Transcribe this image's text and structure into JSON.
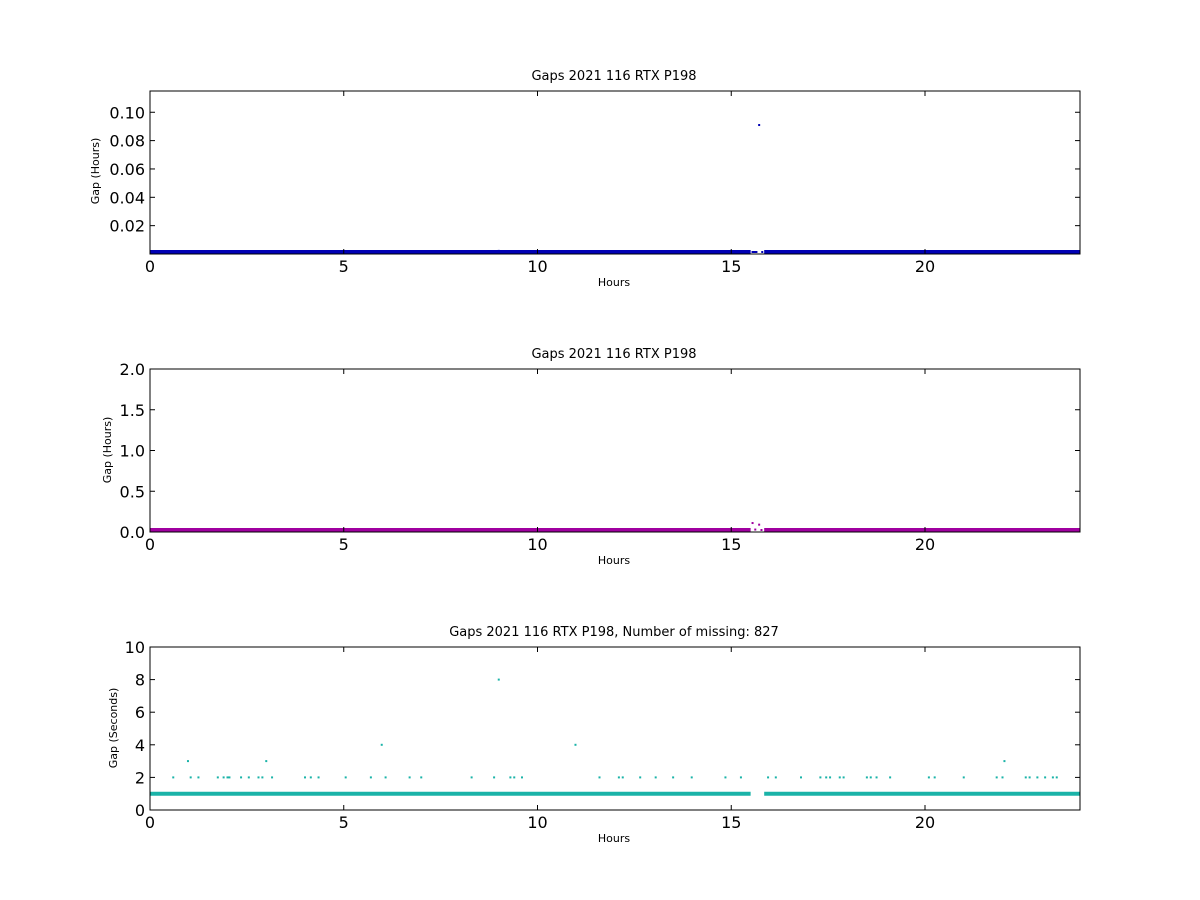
{
  "colors": {
    "panel1": "#0000b4",
    "panel2": "#a000a0",
    "panel3": "#1ab3a8",
    "axes": "#000000",
    "background": "#ffffff"
  },
  "chart_data": [
    {
      "type": "scatter",
      "title": "Gaps 2021 116 RTX  P198",
      "xlabel": "Hours",
      "ylabel": "Gap (Hours)",
      "xlim": [
        0,
        24
      ],
      "ylim": [
        0,
        0.115
      ],
      "xticks": [
        0,
        5,
        10,
        15,
        20
      ],
      "xtick_labels": [
        "0",
        "5",
        "10",
        "15",
        "20"
      ],
      "yticks": [
        0.02,
        0.04,
        0.06,
        0.08,
        0.1
      ],
      "ytick_labels": [
        "0.02",
        "0.04",
        "0.06",
        "0.08",
        "0.10"
      ],
      "grid": false,
      "series": [
        {
          "baseline": {
            "y": 0.0003,
            "x_ranges": [
              [
                0,
                15.5
              ],
              [
                15.85,
                24
              ]
            ]
          },
          "points": [
            {
              "x": 9.0,
              "y": 0.0022
            },
            {
              "x": 15.55,
              "y": 0.0006
            },
            {
              "x": 15.6,
              "y": 0.0008
            },
            {
              "x": 15.65,
              "y": 0.0006
            },
            {
              "x": 15.72,
              "y": 0.091
            },
            {
              "x": 15.8,
              "y": 0.0008
            }
          ]
        }
      ]
    },
    {
      "type": "scatter",
      "title": "Gaps 2021 116 RTX  P198",
      "xlabel": "Hours",
      "ylabel": "Gap (Hours)",
      "xlim": [
        0,
        24
      ],
      "ylim": [
        0,
        2.0
      ],
      "xticks": [
        0,
        5,
        10,
        15,
        20
      ],
      "xtick_labels": [
        "0",
        "5",
        "10",
        "15",
        "20"
      ],
      "yticks": [
        0.0,
        0.5,
        1.0,
        1.5,
        2.0
      ],
      "ytick_labels": [
        "0.0",
        "0.5",
        "1.0",
        "1.5",
        "2.0"
      ],
      "grid": false,
      "series": [
        {
          "baseline": {
            "y": 0.01,
            "x_ranges": [
              [
                0,
                15.5
              ],
              [
                15.85,
                24
              ]
            ]
          },
          "points": [
            {
              "x": 15.55,
              "y": 0.11
            },
            {
              "x": 15.62,
              "y": 0.03
            },
            {
              "x": 15.72,
              "y": 0.09
            },
            {
              "x": 15.78,
              "y": 0.02
            }
          ]
        }
      ]
    },
    {
      "type": "scatter",
      "title": "Gaps 2021 116 RTX  P198, Number of missing: 827",
      "xlabel": "Hours",
      "ylabel": "Gap (Seconds)",
      "xlim": [
        0,
        24
      ],
      "ylim": [
        0,
        10
      ],
      "xticks": [
        0,
        5,
        10,
        15,
        20
      ],
      "xtick_labels": [
        "0",
        "5",
        "10",
        "15",
        "20"
      ],
      "yticks": [
        0,
        2,
        4,
        6,
        8,
        10
      ],
      "ytick_labels": [
        "0",
        "2",
        "4",
        "6",
        "8",
        "10"
      ],
      "grid": false,
      "series": [
        {
          "baseline": {
            "y": 1,
            "x_ranges": [
              [
                0,
                15.5
              ],
              [
                15.85,
                24
              ]
            ]
          },
          "points": [
            {
              "x": 0.6,
              "y": 2
            },
            {
              "x": 0.98,
              "y": 3
            },
            {
              "x": 1.05,
              "y": 2
            },
            {
              "x": 1.25,
              "y": 2
            },
            {
              "x": 1.75,
              "y": 2
            },
            {
              "x": 1.9,
              "y": 2
            },
            {
              "x": 2.0,
              "y": 2
            },
            {
              "x": 2.05,
              "y": 2
            },
            {
              "x": 2.35,
              "y": 2
            },
            {
              "x": 2.55,
              "y": 2
            },
            {
              "x": 2.8,
              "y": 2
            },
            {
              "x": 2.9,
              "y": 2
            },
            {
              "x": 3.0,
              "y": 3
            },
            {
              "x": 3.15,
              "y": 2
            },
            {
              "x": 4.0,
              "y": 2
            },
            {
              "x": 4.15,
              "y": 2
            },
            {
              "x": 4.35,
              "y": 2
            },
            {
              "x": 5.05,
              "y": 2
            },
            {
              "x": 5.7,
              "y": 2
            },
            {
              "x": 5.98,
              "y": 4
            },
            {
              "x": 6.08,
              "y": 2
            },
            {
              "x": 6.7,
              "y": 2
            },
            {
              "x": 7.0,
              "y": 2
            },
            {
              "x": 8.3,
              "y": 2
            },
            {
              "x": 8.88,
              "y": 2
            },
            {
              "x": 9.0,
              "y": 8
            },
            {
              "x": 9.3,
              "y": 2
            },
            {
              "x": 9.4,
              "y": 2
            },
            {
              "x": 9.6,
              "y": 2
            },
            {
              "x": 10.98,
              "y": 4
            },
            {
              "x": 11.6,
              "y": 2
            },
            {
              "x": 12.1,
              "y": 2
            },
            {
              "x": 12.2,
              "y": 2
            },
            {
              "x": 12.65,
              "y": 2
            },
            {
              "x": 13.05,
              "y": 2
            },
            {
              "x": 13.5,
              "y": 2
            },
            {
              "x": 13.98,
              "y": 2
            },
            {
              "x": 14.85,
              "y": 2
            },
            {
              "x": 15.25,
              "y": 2
            },
            {
              "x": 15.95,
              "y": 2
            },
            {
              "x": 16.15,
              "y": 2
            },
            {
              "x": 16.8,
              "y": 2
            },
            {
              "x": 17.3,
              "y": 2
            },
            {
              "x": 17.45,
              "y": 2
            },
            {
              "x": 17.55,
              "y": 2
            },
            {
              "x": 17.8,
              "y": 2
            },
            {
              "x": 17.9,
              "y": 2
            },
            {
              "x": 18.5,
              "y": 2
            },
            {
              "x": 18.6,
              "y": 2
            },
            {
              "x": 18.75,
              "y": 2
            },
            {
              "x": 19.1,
              "y": 2
            },
            {
              "x": 20.1,
              "y": 2
            },
            {
              "x": 20.25,
              "y": 2
            },
            {
              "x": 21.0,
              "y": 2
            },
            {
              "x": 21.85,
              "y": 2
            },
            {
              "x": 22.0,
              "y": 2
            },
            {
              "x": 22.05,
              "y": 3
            },
            {
              "x": 22.6,
              "y": 2
            },
            {
              "x": 22.7,
              "y": 2
            },
            {
              "x": 22.9,
              "y": 2
            },
            {
              "x": 23.1,
              "y": 2
            },
            {
              "x": 23.3,
              "y": 2
            },
            {
              "x": 23.4,
              "y": 2
            }
          ]
        }
      ]
    }
  ]
}
